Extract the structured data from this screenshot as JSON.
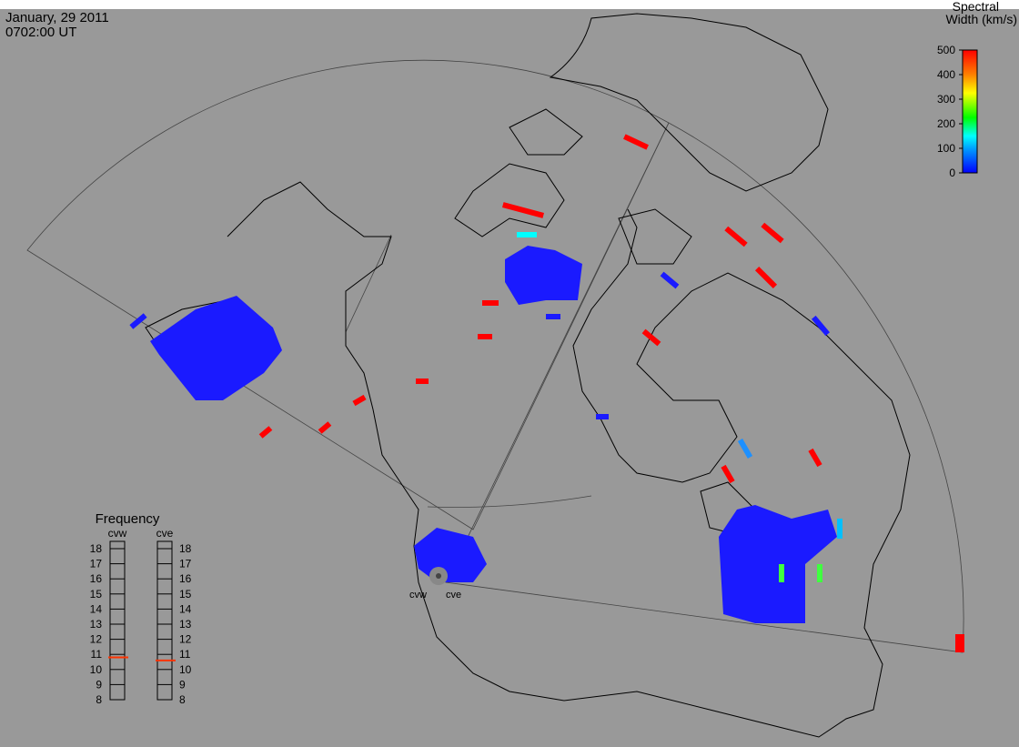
{
  "header": {
    "date": "January, 29 2011",
    "time": "0702:00 UT"
  },
  "colorbar": {
    "title_line1": "Spectral",
    "title_line2": "Width (km/s)",
    "range": [
      0,
      500
    ],
    "ticks": [
      0,
      100,
      200,
      300,
      400,
      500
    ]
  },
  "frequency": {
    "title": "Frequency",
    "range": [
      8,
      18
    ],
    "ticks": [
      8,
      9,
      10,
      11,
      12,
      13,
      14,
      15,
      16,
      17,
      18
    ],
    "radars": [
      {
        "name": "cvw",
        "value": 10.8
      },
      {
        "name": "cve",
        "value": 10.6
      }
    ]
  },
  "map": {
    "radar_labels": [
      "cvw",
      "cve"
    ]
  }
}
